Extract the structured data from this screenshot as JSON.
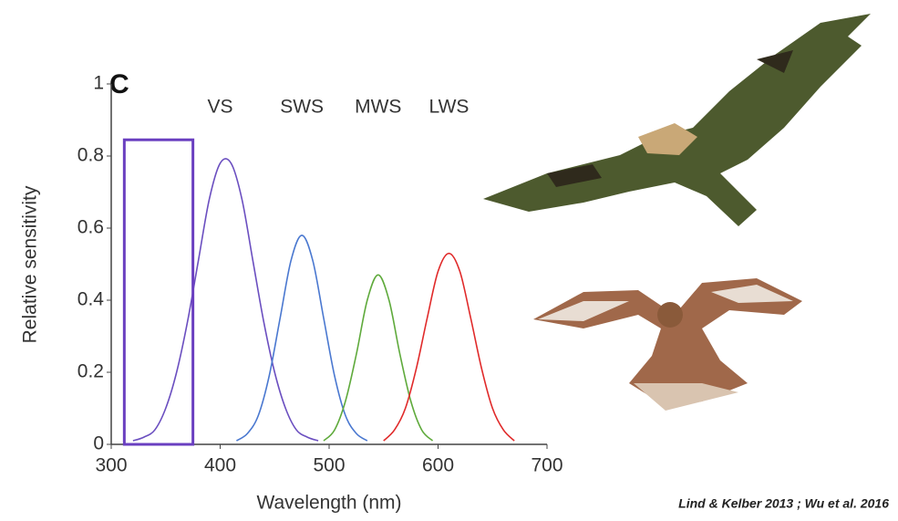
{
  "chart_data": {
    "type": "line",
    "panel_label": "C",
    "x_label": "Wavelength (nm)",
    "y_label": "Relative sensitivity",
    "xlim": [
      300,
      700
    ],
    "ylim": [
      0,
      1
    ],
    "xticks": [
      300,
      400,
      500,
      600,
      700
    ],
    "yticks": [
      0,
      0.2,
      0.4,
      0.6,
      0.8,
      1
    ],
    "series": [
      {
        "name": "VS",
        "color": "#6b4fc0",
        "x": [
          320,
          330,
          340,
          350,
          360,
          370,
          380,
          390,
          400,
          410,
          420,
          430,
          440,
          450,
          460,
          470,
          480,
          490
        ],
        "values": [
          0.01,
          0.02,
          0.04,
          0.1,
          0.2,
          0.34,
          0.51,
          0.68,
          0.78,
          0.78,
          0.68,
          0.51,
          0.34,
          0.2,
          0.1,
          0.04,
          0.02,
          0.01
        ]
      },
      {
        "name": "SWS",
        "color": "#4a78d0",
        "x": [
          415,
          425,
          435,
          445,
          455,
          465,
          475,
          485,
          495,
          505,
          515,
          525,
          535
        ],
        "values": [
          0.01,
          0.03,
          0.08,
          0.19,
          0.35,
          0.51,
          0.58,
          0.51,
          0.35,
          0.19,
          0.08,
          0.03,
          0.01
        ]
      },
      {
        "name": "MWS",
        "color": "#5faa3c",
        "x": [
          495,
          505,
          515,
          525,
          535,
          545,
          555,
          565,
          575,
          585,
          595
        ],
        "values": [
          0.01,
          0.04,
          0.12,
          0.25,
          0.4,
          0.47,
          0.4,
          0.25,
          0.12,
          0.04,
          0.01
        ]
      },
      {
        "name": "LWS",
        "color": "#e02a2a",
        "x": [
          550,
          560,
          570,
          580,
          590,
          600,
          610,
          620,
          630,
          640,
          650,
          660,
          670
        ],
        "values": [
          0.01,
          0.04,
          0.1,
          0.21,
          0.35,
          0.48,
          0.53,
          0.48,
          0.35,
          0.21,
          0.1,
          0.04,
          0.01
        ]
      }
    ],
    "highlight": {
      "x": [
        312,
        375
      ],
      "y": [
        0,
        0.845
      ],
      "color": "#6a3fc0"
    },
    "credit": "Lind & Kelber 2013 ; Wu et al. 2016"
  }
}
